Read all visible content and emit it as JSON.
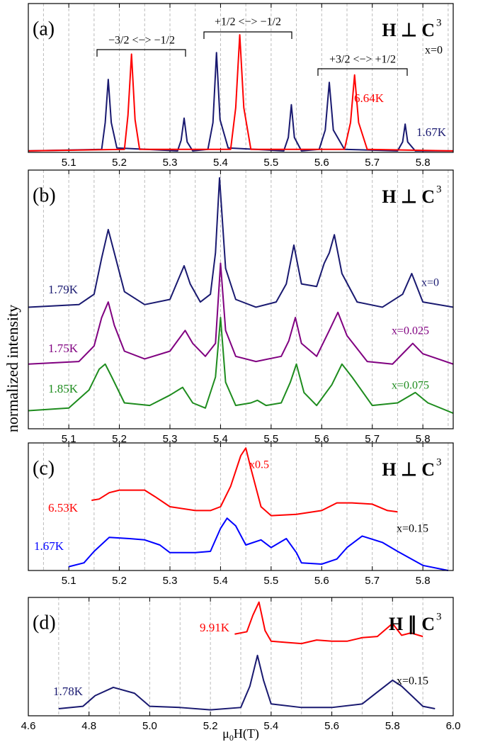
{
  "y_label": "normalized intensity",
  "chart_data": [
    {
      "type": "line",
      "panel_label": "(a)",
      "field_label": "H ⊥ C",
      "field_sup": "3",
      "xlim": [
        5.02,
        5.86
      ],
      "ylim": [
        0,
        1
      ],
      "xticks": [
        5.1,
        5.2,
        5.3,
        5.4,
        5.5,
        5.6,
        5.7,
        5.8
      ],
      "grid_x": [
        5.05,
        5.1,
        5.15,
        5.2,
        5.25,
        5.3,
        5.35,
        5.4,
        5.45,
        5.5,
        5.55,
        5.6,
        5.65,
        5.7,
        5.75,
        5.8,
        5.85
      ],
      "series": [
        {
          "name": "1.67K",
          "color": "#191970",
          "x": [
            5.02,
            5.165,
            5.172,
            5.178,
            5.184,
            5.195,
            5.315,
            5.322,
            5.328,
            5.334,
            5.345,
            5.375,
            5.385,
            5.392,
            5.399,
            5.415,
            5.525,
            5.534,
            5.54,
            5.546,
            5.56,
            5.595,
            5.607,
            5.615,
            5.623,
            5.645,
            5.75,
            5.76,
            5.765,
            5.77,
            5.785,
            5.86
          ],
          "values": [
            0.01,
            0.02,
            0.2,
            0.49,
            0.2,
            0.03,
            0.01,
            0.08,
            0.23,
            0.07,
            0.01,
            0.02,
            0.2,
            0.67,
            0.22,
            0.03,
            0.01,
            0.1,
            0.32,
            0.1,
            0.01,
            0.02,
            0.15,
            0.47,
            0.15,
            0.02,
            0.01,
            0.07,
            0.19,
            0.07,
            0.01,
            0.01
          ]
        },
        {
          "name": "6.64K",
          "color": "#ff0000",
          "x": [
            5.02,
            5.21,
            5.217,
            5.224,
            5.231,
            5.24,
            5.42,
            5.43,
            5.438,
            5.446,
            5.46,
            5.645,
            5.657,
            5.665,
            5.673,
            5.69,
            5.86
          ],
          "values": [
            0.01,
            0.02,
            0.25,
            0.66,
            0.22,
            0.02,
            0.02,
            0.3,
            0.79,
            0.3,
            0.02,
            0.02,
            0.2,
            0.52,
            0.2,
            0.02,
            0.01
          ]
        }
      ],
      "annotations": [
        {
          "text": "−3/2 <−> −1/2",
          "color": "#000000"
        },
        {
          "text": "+1/2 <−> −1/2",
          "color": "#000000"
        },
        {
          "text": "+3/2 <−> +1/2",
          "color": "#000000"
        },
        {
          "text": "x=0",
          "color": "#000000"
        }
      ]
    },
    {
      "type": "line",
      "panel_label": "(b)",
      "field_label": "H ⊥ C",
      "field_sup": "3",
      "xlim": [
        5.02,
        5.86
      ],
      "ylim": [
        0,
        1
      ],
      "xticks": [
        5.1,
        5.2,
        5.3,
        5.4,
        5.5,
        5.6,
        5.7,
        5.8
      ],
      "grid_x": [
        5.05,
        5.1,
        5.15,
        5.2,
        5.25,
        5.3,
        5.35,
        5.4,
        5.45,
        5.5,
        5.55,
        5.6,
        5.65,
        5.7,
        5.75,
        5.8,
        5.85
      ],
      "series": [
        {
          "name": "1.79K",
          "color": "#191970",
          "x": [
            5.02,
            5.12,
            5.15,
            5.165,
            5.178,
            5.19,
            5.21,
            5.25,
            5.3,
            5.315,
            5.328,
            5.34,
            5.36,
            5.38,
            5.39,
            5.398,
            5.41,
            5.43,
            5.47,
            5.51,
            5.53,
            5.545,
            5.56,
            5.59,
            5.605,
            5.615,
            5.625,
            5.64,
            5.67,
            5.72,
            5.76,
            5.778,
            5.8,
            5.86
          ],
          "values": [
            0.47,
            0.48,
            0.52,
            0.66,
            0.77,
            0.68,
            0.53,
            0.48,
            0.5,
            0.57,
            0.63,
            0.56,
            0.49,
            0.52,
            0.68,
            0.97,
            0.62,
            0.5,
            0.47,
            0.49,
            0.56,
            0.71,
            0.56,
            0.55,
            0.64,
            0.68,
            0.75,
            0.6,
            0.49,
            0.47,
            0.52,
            0.6,
            0.49,
            0.47
          ]
        },
        {
          "name": "1.75K",
          "color": "#800080",
          "x": [
            5.02,
            5.12,
            5.15,
            5.165,
            5.178,
            5.19,
            5.21,
            5.25,
            5.3,
            5.315,
            5.33,
            5.345,
            5.37,
            5.39,
            5.4,
            5.41,
            5.43,
            5.47,
            5.52,
            5.535,
            5.548,
            5.56,
            5.59,
            5.615,
            5.632,
            5.65,
            5.69,
            5.74,
            5.765,
            5.78,
            5.8,
            5.86
          ],
          "values": [
            0.25,
            0.26,
            0.32,
            0.43,
            0.49,
            0.4,
            0.3,
            0.27,
            0.3,
            0.34,
            0.38,
            0.33,
            0.28,
            0.33,
            0.64,
            0.38,
            0.28,
            0.26,
            0.28,
            0.34,
            0.43,
            0.33,
            0.28,
            0.38,
            0.45,
            0.36,
            0.26,
            0.25,
            0.3,
            0.33,
            0.29,
            0.25
          ]
        },
        {
          "name": "1.85K",
          "color": "#1e8c1e",
          "x": [
            5.02,
            5.1,
            5.14,
            5.16,
            5.172,
            5.185,
            5.21,
            5.26,
            5.3,
            5.325,
            5.345,
            5.37,
            5.39,
            5.4,
            5.41,
            5.43,
            5.46,
            5.473,
            5.49,
            5.52,
            5.538,
            5.55,
            5.565,
            5.59,
            5.62,
            5.64,
            5.66,
            5.7,
            5.75,
            5.785,
            5.81,
            5.86
          ],
          "values": [
            0.07,
            0.08,
            0.15,
            0.23,
            0.25,
            0.2,
            0.1,
            0.09,
            0.13,
            0.16,
            0.1,
            0.08,
            0.2,
            0.43,
            0.18,
            0.09,
            0.1,
            0.11,
            0.09,
            0.1,
            0.18,
            0.25,
            0.14,
            0.09,
            0.17,
            0.25,
            0.2,
            0.09,
            0.1,
            0.14,
            0.1,
            0.06
          ]
        }
      ],
      "annotations": [
        {
          "text": "x=0",
          "color": "#191970"
        },
        {
          "text": "x=0.025",
          "color": "#800080"
        },
        {
          "text": "x=0.075",
          "color": "#1e8c1e"
        }
      ]
    },
    {
      "type": "line",
      "panel_label": "(c)",
      "field_label": "H ⊥ C",
      "field_sup": "3",
      "xlim": [
        5.02,
        5.86
      ],
      "ylim": [
        0,
        1
      ],
      "xticks": [
        5.1,
        5.2,
        5.3,
        5.4,
        5.5,
        5.6,
        5.7,
        5.8
      ],
      "grid_x": [
        5.05,
        5.1,
        5.15,
        5.2,
        5.25,
        5.3,
        5.35,
        5.4,
        5.45,
        5.5,
        5.55,
        5.6,
        5.65,
        5.7,
        5.75,
        5.8,
        5.85
      ],
      "series": [
        {
          "name": "6.53K",
          "color": "#ff0000",
          "x": [
            5.145,
            5.16,
            5.18,
            5.2,
            5.23,
            5.25,
            5.27,
            5.3,
            5.35,
            5.38,
            5.4,
            5.42,
            5.44,
            5.45,
            5.46,
            5.48,
            5.5,
            5.55,
            5.6,
            5.63,
            5.66,
            5.7,
            5.73,
            5.75
          ],
          "values": [
            0.55,
            0.56,
            0.61,
            0.63,
            0.63,
            0.63,
            0.58,
            0.5,
            0.47,
            0.47,
            0.5,
            0.66,
            0.9,
            0.96,
            0.8,
            0.5,
            0.43,
            0.44,
            0.47,
            0.53,
            0.53,
            0.52,
            0.47,
            0.46
          ]
        },
        {
          "name": "1.67K",
          "color": "#0000ff",
          "x": [
            5.1,
            5.13,
            5.15,
            5.18,
            5.22,
            5.25,
            5.28,
            5.3,
            5.35,
            5.38,
            5.4,
            5.413,
            5.43,
            5.45,
            5.48,
            5.5,
            5.53,
            5.55,
            5.56,
            5.6,
            5.63,
            5.65,
            5.68,
            5.72,
            5.75,
            5.8,
            5.85
          ],
          "values": [
            0.03,
            0.06,
            0.15,
            0.26,
            0.25,
            0.24,
            0.2,
            0.14,
            0.14,
            0.15,
            0.33,
            0.41,
            0.35,
            0.2,
            0.24,
            0.18,
            0.25,
            0.14,
            0.06,
            0.05,
            0.09,
            0.18,
            0.27,
            0.22,
            0.15,
            0.04,
            0
          ]
        }
      ],
      "annotations": [
        {
          "text": "x0.5",
          "color": "#ff0000"
        },
        {
          "text": "x=0.15",
          "color": "#000000"
        }
      ]
    },
    {
      "type": "line",
      "panel_label": "(d)",
      "field_label": "H ∥ C",
      "field_sup": "3",
      "x_label": [
        "μ",
        "0",
        "H(T)"
      ],
      "xlim": [
        4.6,
        6.0
      ],
      "ylim": [
        0,
        1
      ],
      "xticks": [
        4.6,
        4.8,
        {
          "value": 5,
          "label": "5.0"
        },
        5.2,
        5.4,
        5.6,
        5.8,
        {
          "value": 6,
          "label": "6.0"
        }
      ],
      "grid_x": [
        4.7,
        4.8,
        4.9,
        5.0,
        5.1,
        5.2,
        5.3,
        5.4,
        5.5,
        5.6,
        5.7,
        5.8,
        5.9
      ],
      "series": [
        {
          "name": "9.91K",
          "color": "#ff0000",
          "x": [
            5.28,
            5.32,
            5.34,
            5.36,
            5.38,
            5.4,
            5.45,
            5.5,
            5.55,
            5.6,
            5.65,
            5.7,
            5.75,
            5.8,
            5.83,
            5.86,
            5.9
          ],
          "values": [
            0.69,
            0.71,
            0.85,
            0.96,
            0.72,
            0.63,
            0.62,
            0.61,
            0.64,
            0.63,
            0.63,
            0.66,
            0.67,
            0.78,
            0.68,
            0.7,
            0.67
          ]
        },
        {
          "name": "1.78K",
          "color": "#191970",
          "x": [
            4.7,
            4.78,
            4.82,
            4.88,
            4.95,
            5.0,
            5.1,
            5.2,
            5.3,
            5.33,
            5.355,
            5.375,
            5.4,
            5.5,
            5.6,
            5.7,
            5.75,
            5.8,
            5.83,
            5.9,
            5.94
          ],
          "values": [
            0.06,
            0.08,
            0.17,
            0.24,
            0.19,
            0.08,
            0.07,
            0.05,
            0.07,
            0.25,
            0.51,
            0.3,
            0.1,
            0.07,
            0.07,
            0.1,
            0.2,
            0.3,
            0.25,
            0.08,
            0.06
          ]
        }
      ],
      "annotations": [
        {
          "text": "x=0.15",
          "color": "#000000"
        }
      ]
    }
  ]
}
